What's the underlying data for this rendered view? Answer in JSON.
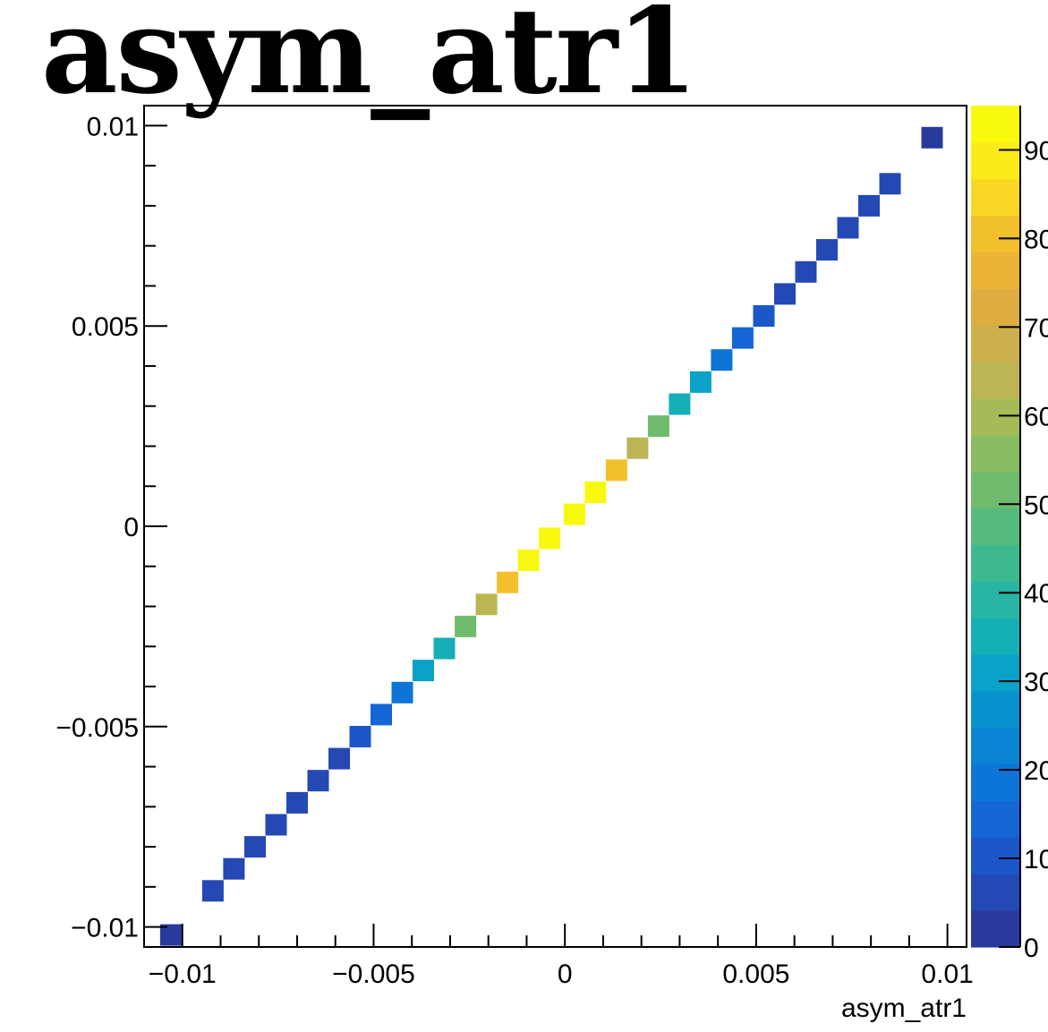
{
  "chart_data": {
    "type": "heatmap",
    "title": "asym_atr1",
    "xlabel": "asym_atr1",
    "ylabel": "",
    "xlim": [
      -0.011,
      0.0105
    ],
    "ylim": [
      -0.0105,
      0.0105
    ],
    "x_ticks": [
      {
        "value": -0.01,
        "label": "−0.01"
      },
      {
        "value": -0.005,
        "label": "−0.005"
      },
      {
        "value": 0,
        "label": "0"
      },
      {
        "value": 0.005,
        "label": "0.005"
      },
      {
        "value": 0.01,
        "label": "0.01"
      }
    ],
    "y_ticks": [
      {
        "value": -0.01,
        "label": "−0.01"
      },
      {
        "value": -0.005,
        "label": "−0.005"
      },
      {
        "value": 0,
        "label": "0"
      },
      {
        "value": 0.005,
        "label": "0.005"
      },
      {
        "value": 0.01,
        "label": "0.01"
      }
    ],
    "colorbar": {
      "min": 0,
      "max": 95,
      "ticks": [
        {
          "value": 0,
          "label": "0"
        },
        {
          "value": 10,
          "label": "10"
        },
        {
          "value": 20,
          "label": "20"
        },
        {
          "value": 30,
          "label": "30"
        },
        {
          "value": 40,
          "label": "40"
        },
        {
          "value": 50,
          "label": "50"
        },
        {
          "value": 60,
          "label": "60"
        },
        {
          "value": 70,
          "label": "70"
        },
        {
          "value": 80,
          "label": "80"
        },
        {
          "value": 90,
          "label": "90"
        }
      ],
      "palette": [
        "#2a3a9c",
        "#2448b4",
        "#1b57c9",
        "#1465d6",
        "#0d74d8",
        "#0983d4",
        "#0893cf",
        "#0aa2c8",
        "#14afb7",
        "#28b5a3",
        "#3db98e",
        "#55bb7d",
        "#6fbc6f",
        "#8abc62",
        "#a4bb58",
        "#bbb653",
        "#cdaf4c",
        "#ddad41",
        "#ebb438",
        "#f3c02d",
        "#f8d624",
        "#fbeb1b",
        "#f9f90e"
      ]
    },
    "cells": [
      {
        "x": -0.0103,
        "y": -0.0102,
        "value": 4
      },
      {
        "x": -0.0092,
        "y": -0.0091,
        "value": 5
      },
      {
        "x": -0.00865,
        "y": -0.00855,
        "value": 5
      },
      {
        "x": -0.0081,
        "y": -0.008,
        "value": 5
      },
      {
        "x": -0.00755,
        "y": -0.00745,
        "value": 5
      },
      {
        "x": -0.007,
        "y": -0.0069,
        "value": 6
      },
      {
        "x": -0.00645,
        "y": -0.00635,
        "value": 6
      },
      {
        "x": -0.0059,
        "y": -0.0058,
        "value": 8
      },
      {
        "x": -0.00535,
        "y": -0.00525,
        "value": 12
      },
      {
        "x": -0.0048,
        "y": -0.0047,
        "value": 15
      },
      {
        "x": -0.00425,
        "y": -0.00415,
        "value": 20
      },
      {
        "x": -0.0037,
        "y": -0.0036,
        "value": 29
      },
      {
        "x": -0.00315,
        "y": -0.00305,
        "value": 37
      },
      {
        "x": -0.0026,
        "y": -0.0025,
        "value": 50
      },
      {
        "x": -0.00205,
        "y": -0.00195,
        "value": 63
      },
      {
        "x": -0.0015,
        "y": -0.0014,
        "value": 82
      },
      {
        "x": -0.00095,
        "y": -0.00085,
        "value": 92
      },
      {
        "x": -0.0004,
        "y": -0.0003,
        "value": 95
      },
      {
        "x": 0.00025,
        "y": 0.0003,
        "value": 94
      },
      {
        "x": 0.0008,
        "y": 0.00085,
        "value": 93
      },
      {
        "x": 0.00135,
        "y": 0.0014,
        "value": 80
      },
      {
        "x": 0.0019,
        "y": 0.00195,
        "value": 63
      },
      {
        "x": 0.00245,
        "y": 0.0025,
        "value": 52
      },
      {
        "x": 0.003,
        "y": 0.00305,
        "value": 37
      },
      {
        "x": 0.00355,
        "y": 0.0036,
        "value": 29
      },
      {
        "x": 0.0041,
        "y": 0.00415,
        "value": 19
      },
      {
        "x": 0.00465,
        "y": 0.0047,
        "value": 15
      },
      {
        "x": 0.0052,
        "y": 0.00525,
        "value": 11
      },
      {
        "x": 0.00575,
        "y": 0.0058,
        "value": 7
      },
      {
        "x": 0.0063,
        "y": 0.00635,
        "value": 6
      },
      {
        "x": 0.00685,
        "y": 0.0069,
        "value": 5
      },
      {
        "x": 0.0074,
        "y": 0.00745,
        "value": 5
      },
      {
        "x": 0.00795,
        "y": 0.008,
        "value": 5
      },
      {
        "x": 0.0085,
        "y": 0.00855,
        "value": 5
      },
      {
        "x": 0.0096,
        "y": 0.0097,
        "value": 4
      }
    ]
  }
}
